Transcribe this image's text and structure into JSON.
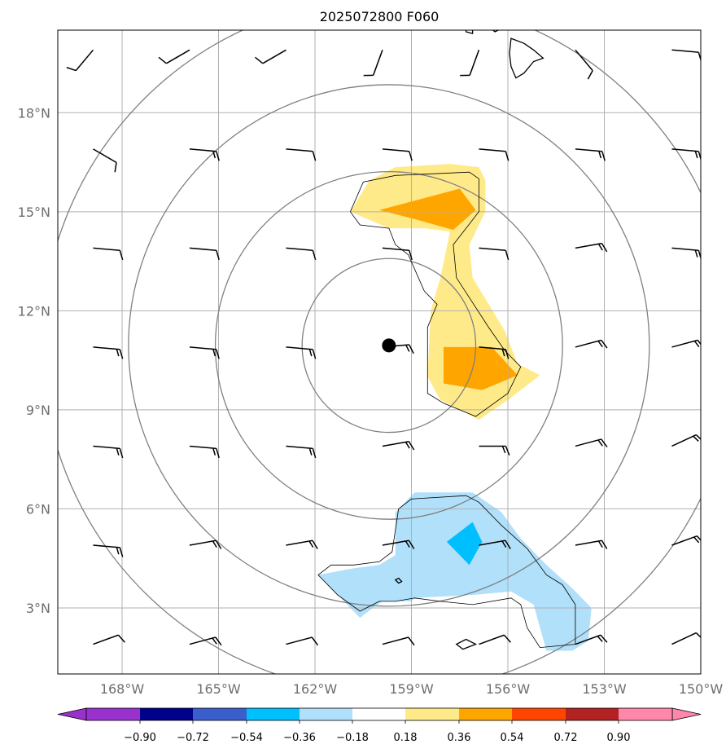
{
  "chart_data": {
    "type": "contour-map",
    "title": "2025072800 F060",
    "xlim": [
      -170,
      -150
    ],
    "ylim": [
      1,
      20.5
    ],
    "x_ticks": [
      {
        "value": -168,
        "label": "168°W"
      },
      {
        "value": -165,
        "label": "165°W"
      },
      {
        "value": -162,
        "label": "162°W"
      },
      {
        "value": -159,
        "label": "159°W"
      },
      {
        "value": -156,
        "label": "156°W"
      },
      {
        "value": -153,
        "label": "153°W"
      },
      {
        "value": -150,
        "label": "150°W"
      }
    ],
    "y_ticks": [
      {
        "value": 3,
        "label": "3°N"
      },
      {
        "value": 6,
        "label": "6°N"
      },
      {
        "value": 9,
        "label": "9°N"
      },
      {
        "value": 12,
        "label": "12°N"
      },
      {
        "value": 15,
        "label": "15°N"
      },
      {
        "value": 18,
        "label": "18°N"
      }
    ],
    "grid": true,
    "center_marker": {
      "lon": -159.7,
      "lat": 10.95
    },
    "range_rings_deg": [
      2.7,
      5.4,
      8.1,
      10.8
    ],
    "fill_regions": [
      {
        "level": "0.18-0.36",
        "color": "#ffea8a",
        "points": [
          [
            -160.9,
            15.0
          ],
          [
            -160.3,
            15.95
          ],
          [
            -159.5,
            16.35
          ],
          [
            -157.8,
            16.45
          ],
          [
            -156.9,
            16.35
          ],
          [
            -156.7,
            15.95
          ],
          [
            -156.7,
            15.0
          ],
          [
            -157.2,
            14.0
          ],
          [
            -157.1,
            13.0
          ],
          [
            -156.1,
            11.4
          ],
          [
            -155.7,
            10.4
          ],
          [
            -155.0,
            10.05
          ],
          [
            -156.0,
            9.3
          ],
          [
            -156.9,
            8.7
          ],
          [
            -157.1,
            8.8
          ],
          [
            -158.1,
            9.3
          ],
          [
            -158.5,
            10.0
          ],
          [
            -158.4,
            12.0
          ],
          [
            -158.1,
            13.0
          ],
          [
            -157.8,
            14.4
          ],
          [
            -158.6,
            14.5
          ],
          [
            -159.7,
            14.5
          ]
        ]
      },
      {
        "level": "0.36-0.54",
        "color": "#ffa500",
        "points": [
          [
            -160.0,
            15.05
          ],
          [
            -157.5,
            15.7
          ],
          [
            -157.0,
            15.05
          ],
          [
            -157.7,
            14.45
          ],
          [
            -158.8,
            14.75
          ]
        ]
      },
      {
        "level": "0.36-0.54",
        "color": "#ffa500",
        "points": [
          [
            -158.0,
            10.9
          ],
          [
            -156.5,
            10.9
          ],
          [
            -155.7,
            10.05
          ],
          [
            -156.8,
            9.6
          ],
          [
            -158.0,
            9.8
          ]
        ]
      },
      {
        "level": "-0.36--0.18",
        "color": "#b0e0fa",
        "points": [
          [
            -161.9,
            4.0
          ],
          [
            -161.3,
            3.4
          ],
          [
            -160.6,
            2.7
          ],
          [
            -160.2,
            3.0
          ],
          [
            -159.9,
            3.2
          ],
          [
            -159.0,
            3.2
          ],
          [
            -158.9,
            3.3
          ],
          [
            -157.0,
            3.4
          ],
          [
            -155.9,
            3.5
          ],
          [
            -155.2,
            3.1
          ],
          [
            -155.0,
            2.4
          ],
          [
            -154.8,
            1.7
          ],
          [
            -154.0,
            1.7
          ],
          [
            -153.5,
            2.0
          ],
          [
            -153.4,
            3.0
          ],
          [
            -154.0,
            3.6
          ],
          [
            -154.8,
            4.3
          ],
          [
            -155.6,
            5.1
          ],
          [
            -156.2,
            5.9
          ],
          [
            -157.1,
            6.5
          ],
          [
            -158.9,
            6.5
          ],
          [
            -159.5,
            5.9
          ],
          [
            -159.5,
            4.6
          ],
          [
            -160.0,
            4.3
          ],
          [
            -160.8,
            4.2
          ]
        ]
      },
      {
        "level": "-0.54--0.36",
        "color": "#00bfff",
        "points": [
          [
            -157.9,
            5.0
          ],
          [
            -157.1,
            5.6
          ],
          [
            -156.8,
            5.0
          ],
          [
            -157.2,
            4.3
          ]
        ]
      }
    ],
    "contour_lines": [
      {
        "points": [
          [
            -160.9,
            15.0
          ],
          [
            -160.5,
            15.9
          ],
          [
            -159.5,
            16.1
          ],
          [
            -157.2,
            16.2
          ],
          [
            -156.9,
            16.0
          ],
          [
            -156.9,
            15.0
          ],
          [
            -157.3,
            14.5
          ],
          [
            -157.7,
            14.0
          ],
          [
            -157.6,
            13.0
          ],
          [
            -156.6,
            11.5
          ],
          [
            -156.1,
            10.8
          ],
          [
            -155.6,
            10.3
          ],
          [
            -156.0,
            9.5
          ],
          [
            -157.0,
            8.8
          ],
          [
            -158.0,
            9.2
          ],
          [
            -158.5,
            9.5
          ],
          [
            -158.5,
            11.5
          ],
          [
            -158.2,
            12.2
          ],
          [
            -158.6,
            12.6
          ],
          [
            -159.1,
            13.7
          ],
          [
            -159.5,
            14.0
          ],
          [
            -159.7,
            14.5
          ],
          [
            -160.6,
            14.6
          ],
          [
            -160.9,
            15.0
          ]
        ]
      },
      {
        "points": [
          [
            -159.4,
            6.0
          ],
          [
            -159.0,
            6.3
          ],
          [
            -157.3,
            6.4
          ],
          [
            -156.9,
            6.2
          ],
          [
            -156.2,
            5.5
          ],
          [
            -155.4,
            4.8
          ],
          [
            -154.8,
            4.0
          ],
          [
            -154.3,
            3.7
          ],
          [
            -153.9,
            3.1
          ],
          [
            -153.9,
            1.9
          ],
          [
            -155.0,
            1.8
          ],
          [
            -155.4,
            2.4
          ],
          [
            -155.6,
            3.1
          ],
          [
            -155.9,
            3.3
          ],
          [
            -157.1,
            3.1
          ],
          [
            -158.1,
            3.2
          ],
          [
            -158.9,
            3.3
          ],
          [
            -159.5,
            3.2
          ],
          [
            -160.0,
            3.2
          ],
          [
            -160.6,
            2.9
          ],
          [
            -161.3,
            3.4
          ],
          [
            -161.9,
            4.0
          ],
          [
            -161.5,
            4.3
          ],
          [
            -160.8,
            4.3
          ],
          [
            -160.0,
            4.4
          ],
          [
            -159.6,
            4.7
          ],
          [
            -159.4,
            6.0
          ]
        ]
      }
    ],
    "coastlines": [
      {
        "points": [
          [
            -155.9,
            20.25
          ],
          [
            -155.5,
            20.1
          ],
          [
            -155.2,
            19.9
          ],
          [
            -154.9,
            19.65
          ],
          [
            -155.2,
            19.55
          ],
          [
            -155.5,
            19.2
          ],
          [
            -155.75,
            19.05
          ],
          [
            -155.9,
            19.4
          ],
          [
            -155.95,
            19.8
          ],
          [
            -155.9,
            20.25
          ]
        ]
      },
      {
        "points": [
          [
            -156.6,
            20.6
          ],
          [
            -156.3,
            20.7
          ],
          [
            -156.1,
            20.6
          ],
          [
            -156.4,
            20.45
          ],
          [
            -156.6,
            20.6
          ]
        ]
      },
      {
        "points": [
          [
            -157.3,
            20.6
          ],
          [
            -157.1,
            20.55
          ],
          [
            -157.1,
            20.4
          ],
          [
            -157.3,
            20.45
          ],
          [
            -157.3,
            20.6
          ]
        ]
      },
      {
        "points": [
          [
            -157.3,
            2.05
          ],
          [
            -157.0,
            1.9
          ],
          [
            -157.4,
            1.75
          ],
          [
            -157.6,
            1.9
          ],
          [
            -157.3,
            2.05
          ]
        ]
      },
      {
        "points": [
          [
            -159.4,
            3.9
          ],
          [
            -159.3,
            3.8
          ],
          [
            -159.4,
            3.75
          ],
          [
            -159.5,
            3.85
          ],
          [
            -159.4,
            3.9
          ]
        ]
      }
    ],
    "wind_barbs": [
      {
        "lon": -168.9,
        "lat": 19.9,
        "dir": 220,
        "flags": 1
      },
      {
        "lon": -165.9,
        "lat": 19.9,
        "dir": 240,
        "flags": 1
      },
      {
        "lon": -162.9,
        "lat": 19.9,
        "dir": 240,
        "flags": 1
      },
      {
        "lon": -159.9,
        "lat": 19.9,
        "dir": 200,
        "flags": 1
      },
      {
        "lon": -156.9,
        "lat": 19.9,
        "dir": 200,
        "flags": 1
      },
      {
        "lon": -153.9,
        "lat": 19.9,
        "dir": 140,
        "flags": 1
      },
      {
        "lon": -150.9,
        "lat": 19.9,
        "dir": 95,
        "flags": 1
      },
      {
        "lon": -168.9,
        "lat": 16.9,
        "dir": 120,
        "flags": 1
      },
      {
        "lon": -165.9,
        "lat": 16.9,
        "dir": 95,
        "flags": 2
      },
      {
        "lon": -162.9,
        "lat": 16.9,
        "dir": 95,
        "flags": 1
      },
      {
        "lon": -159.9,
        "lat": 16.9,
        "dir": 95,
        "flags": 1
      },
      {
        "lon": -156.9,
        "lat": 16.9,
        "dir": 95,
        "flags": 1
      },
      {
        "lon": -153.9,
        "lat": 16.9,
        "dir": 95,
        "flags": 2
      },
      {
        "lon": -150.9,
        "lat": 16.9,
        "dir": 95,
        "flags": 2
      },
      {
        "lon": -168.9,
        "lat": 13.9,
        "dir": 95,
        "flags": 1
      },
      {
        "lon": -165.9,
        "lat": 13.9,
        "dir": 95,
        "flags": 1
      },
      {
        "lon": -162.9,
        "lat": 13.9,
        "dir": 95,
        "flags": 1
      },
      {
        "lon": -159.9,
        "lat": 13.9,
        "dir": 95,
        "flags": 1
      },
      {
        "lon": -156.9,
        "lat": 13.9,
        "dir": 95,
        "flags": 1
      },
      {
        "lon": -153.9,
        "lat": 13.9,
        "dir": 80,
        "flags": 2
      },
      {
        "lon": -150.9,
        "lat": 13.9,
        "dir": 95,
        "flags": 2
      },
      {
        "lon": -168.9,
        "lat": 10.9,
        "dir": 95,
        "flags": 2
      },
      {
        "lon": -165.9,
        "lat": 10.9,
        "dir": 95,
        "flags": 2
      },
      {
        "lon": -162.9,
        "lat": 10.9,
        "dir": 95,
        "flags": 2
      },
      {
        "lon": -159.9,
        "lat": 10.9,
        "dir": 85,
        "flags": 2
      },
      {
        "lon": -156.9,
        "lat": 10.9,
        "dir": 95,
        "flags": 2
      },
      {
        "lon": -153.9,
        "lat": 10.9,
        "dir": 75,
        "flags": 2
      },
      {
        "lon": -150.9,
        "lat": 10.9,
        "dir": 75,
        "flags": 2
      },
      {
        "lon": -168.9,
        "lat": 7.9,
        "dir": 95,
        "flags": 2
      },
      {
        "lon": -165.9,
        "lat": 7.9,
        "dir": 95,
        "flags": 2
      },
      {
        "lon": -162.9,
        "lat": 7.9,
        "dir": 95,
        "flags": 2
      },
      {
        "lon": -159.9,
        "lat": 7.9,
        "dir": 80,
        "flags": 2
      },
      {
        "lon": -156.9,
        "lat": 7.9,
        "dir": 90,
        "flags": 2
      },
      {
        "lon": -153.9,
        "lat": 7.9,
        "dir": 75,
        "flags": 2
      },
      {
        "lon": -150.9,
        "lat": 7.9,
        "dir": 65,
        "flags": 2
      },
      {
        "lon": -168.9,
        "lat": 4.9,
        "dir": 95,
        "flags": 2
      },
      {
        "lon": -165.9,
        "lat": 4.9,
        "dir": 80,
        "flags": 2
      },
      {
        "lon": -162.9,
        "lat": 4.9,
        "dir": 80,
        "flags": 2
      },
      {
        "lon": -159.9,
        "lat": 4.9,
        "dir": 80,
        "flags": 2
      },
      {
        "lon": -156.9,
        "lat": 4.9,
        "dir": 80,
        "flags": 2
      },
      {
        "lon": -153.9,
        "lat": 4.9,
        "dir": 80,
        "flags": 2
      },
      {
        "lon": -150.9,
        "lat": 4.9,
        "dir": 70,
        "flags": 2
      },
      {
        "lon": -168.9,
        "lat": 1.9,
        "dir": 70,
        "flags": 1
      },
      {
        "lon": -165.9,
        "lat": 1.9,
        "dir": 75,
        "flags": 2
      },
      {
        "lon": -162.9,
        "lat": 1.9,
        "dir": 75,
        "flags": 1
      },
      {
        "lon": -159.9,
        "lat": 1.9,
        "dir": 75,
        "flags": 1
      },
      {
        "lon": -156.9,
        "lat": 1.9,
        "dir": 70,
        "flags": 1
      },
      {
        "lon": -153.9,
        "lat": 1.9,
        "dir": 70,
        "flags": 2
      },
      {
        "lon": -150.9,
        "lat": 1.9,
        "dir": 65,
        "flags": 1
      }
    ],
    "colorbar": {
      "colors": [
        "#9932cc",
        "#00008b",
        "#3a5fcd",
        "#00bfff",
        "#b0e0fa",
        "#ffffff",
        "#ffea8a",
        "#ffa500",
        "#ff4500",
        "#b22222",
        "#ff88aa"
      ],
      "ticks": [
        "−0.90",
        "−0.72",
        "−0.54",
        "−0.36",
        "−0.18",
        "0.18",
        "0.36",
        "0.54",
        "0.72",
        "0.90"
      ]
    }
  }
}
